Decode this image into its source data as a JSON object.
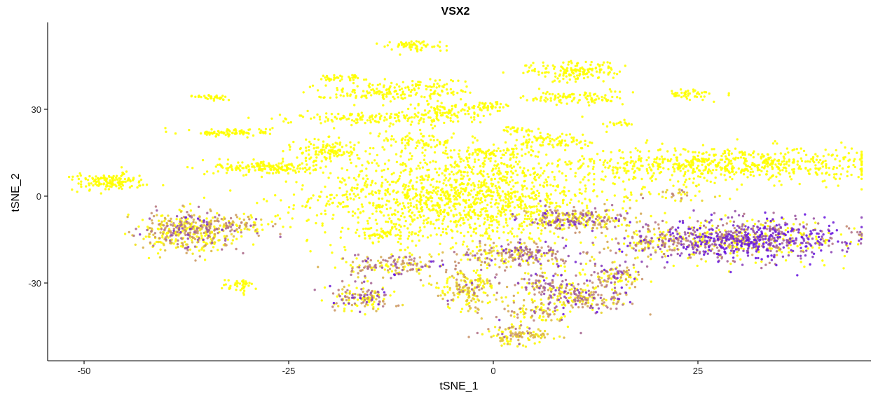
{
  "chart_data": {
    "type": "scatter",
    "title": "VSX2",
    "xlabel": "tSNE_1",
    "ylabel": "tSNE_2",
    "xlim": [
      -55,
      46
    ],
    "ylim": [
      -56,
      60
    ],
    "x_ticks": [
      -50,
      -25,
      0,
      25
    ],
    "x_tick_labels": [
      "-50",
      "-25",
      "0",
      "25"
    ],
    "y_ticks": [
      -30,
      0,
      30
    ],
    "y_tick_labels": [
      "-30",
      "0",
      "30"
    ],
    "grid": false,
    "legend": "none",
    "color_scale": {
      "low": "#FFFF00",
      "mid": "#C89070",
      "high": "#6A1BE0"
    },
    "clusters": [
      {
        "x": -4,
        "y": 0,
        "sx": 9,
        "sy": 8,
        "n": 1400,
        "expr": 0.0
      },
      {
        "x": 29,
        "y": 11,
        "sx": 9,
        "sy": 3,
        "n": 650,
        "expr": 0.0
      },
      {
        "x": 31,
        "y": -15,
        "sx": 6,
        "sy": 3.5,
        "n": 850,
        "expr": 0.82
      },
      {
        "x": 20,
        "y": -16,
        "sx": 3,
        "sy": 2.5,
        "n": 160,
        "expr": 0.5
      },
      {
        "x": -37,
        "y": -12,
        "sx": 3,
        "sy": 3.5,
        "n": 450,
        "expr": 0.45
      },
      {
        "x": -31,
        "y": -10,
        "sx": 2.5,
        "sy": 1.5,
        "n": 80,
        "expr": 0.35
      },
      {
        "x": -47,
        "y": 5,
        "sx": 2.2,
        "sy": 1.5,
        "n": 140,
        "expr": 0.0
      },
      {
        "x": -28,
        "y": 10,
        "sx": 3,
        "sy": 1.2,
        "n": 160,
        "expr": 0.0
      },
      {
        "x": -32,
        "y": 22,
        "sx": 2.5,
        "sy": 0.7,
        "n": 90,
        "expr": 0.0
      },
      {
        "x": -34,
        "y": 34,
        "sx": 1.2,
        "sy": 0.6,
        "n": 35,
        "expr": 0.0
      },
      {
        "x": -31,
        "y": -31,
        "sx": 1,
        "sy": 1.3,
        "n": 40,
        "expr": 0.0
      },
      {
        "x": -20,
        "y": 16,
        "sx": 2,
        "sy": 2,
        "n": 120,
        "expr": 0.0
      },
      {
        "x": -16,
        "y": 27,
        "sx": 5,
        "sy": 1,
        "n": 130,
        "expr": 0.0
      },
      {
        "x": -14,
        "y": 36,
        "sx": 4,
        "sy": 1.5,
        "n": 130,
        "expr": 0.0
      },
      {
        "x": -19,
        "y": 41,
        "sx": 1.5,
        "sy": 0.6,
        "n": 40,
        "expr": 0.0
      },
      {
        "x": -10,
        "y": 52,
        "sx": 2,
        "sy": 1,
        "n": 60,
        "expr": 0.0
      },
      {
        "x": -7,
        "y": 37,
        "sx": 2,
        "sy": 2,
        "n": 60,
        "expr": 0.0
      },
      {
        "x": -6,
        "y": 29,
        "sx": 3,
        "sy": 2,
        "n": 100,
        "expr": 0.0
      },
      {
        "x": -1,
        "y": 31,
        "sx": 1.5,
        "sy": 0.7,
        "n": 40,
        "expr": 0.0
      },
      {
        "x": 10,
        "y": 43,
        "sx": 3,
        "sy": 1.8,
        "n": 150,
        "expr": 0.0
      },
      {
        "x": 10,
        "y": 34,
        "sx": 3,
        "sy": 1.2,
        "n": 100,
        "expr": 0.0
      },
      {
        "x": 8,
        "y": 19,
        "sx": 2.5,
        "sy": 1.5,
        "n": 80,
        "expr": 0.0
      },
      {
        "x": 3,
        "y": 23,
        "sx": 1.2,
        "sy": 0.6,
        "n": 25,
        "expr": 0.0
      },
      {
        "x": 0,
        "y": 15,
        "sx": 3,
        "sy": 1,
        "n": 70,
        "expr": 0.0
      },
      {
        "x": -9,
        "y": 19,
        "sx": 2.5,
        "sy": 1.5,
        "n": 70,
        "expr": 0.0
      },
      {
        "x": 24,
        "y": 35,
        "sx": 1.5,
        "sy": 1,
        "n": 45,
        "expr": 0.0
      },
      {
        "x": 15.5,
        "y": 25,
        "sx": 0.8,
        "sy": 0.5,
        "n": 18,
        "expr": 0.0
      },
      {
        "x": 10,
        "y": -8,
        "sx": 3.5,
        "sy": 2,
        "n": 280,
        "expr": 0.55
      },
      {
        "x": 3,
        "y": -20,
        "sx": 4,
        "sy": 2,
        "n": 250,
        "expr": 0.55
      },
      {
        "x": 15,
        "y": -27,
        "sx": 2,
        "sy": 2,
        "n": 110,
        "expr": 0.5
      },
      {
        "x": 11,
        "y": -35,
        "sx": 3,
        "sy": 2.5,
        "n": 220,
        "expr": 0.55
      },
      {
        "x": 6,
        "y": -30,
        "sx": 2,
        "sy": 2,
        "n": 90,
        "expr": 0.6
      },
      {
        "x": -3,
        "y": -32,
        "sx": 2,
        "sy": 3.5,
        "n": 200,
        "expr": 0.3
      },
      {
        "x": 3,
        "y": -48,
        "sx": 2,
        "sy": 1.5,
        "n": 120,
        "expr": 0.3
      },
      {
        "x": 5,
        "y": -40,
        "sx": 2.5,
        "sy": 2,
        "n": 80,
        "expr": 0.45
      },
      {
        "x": -16,
        "y": -35,
        "sx": 2,
        "sy": 2,
        "n": 150,
        "expr": 0.55
      },
      {
        "x": -12,
        "y": -24,
        "sx": 3.5,
        "sy": 2,
        "n": 160,
        "expr": 0.5
      },
      {
        "x": 22,
        "y": 1,
        "sx": 2.5,
        "sy": 1.5,
        "n": 40,
        "expr": 0.4
      },
      {
        "x": -13,
        "y": -13,
        "sx": 2,
        "sy": 1.5,
        "n": 60,
        "expr": 0.0
      }
    ]
  }
}
